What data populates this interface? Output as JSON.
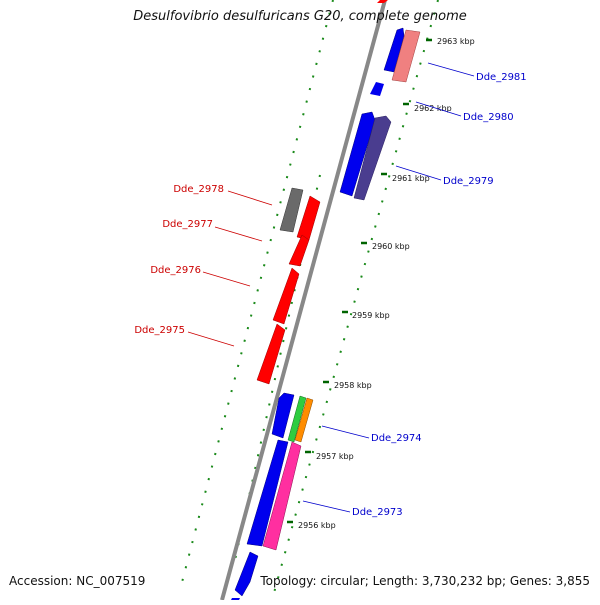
{
  "title": "Desulfovibrio desulfuricans G20, complete genome",
  "footer": {
    "accession": "Accession: NC_007519",
    "topology": "Topology: circular; Length: 3,730,232 bp; Genes: 3,855"
  },
  "kbp_labels": [
    "2963 kbp",
    "2962 kbp",
    "2961 kbp",
    "2960 kbp",
    "2959 kbp",
    "2958 kbp",
    "2957 kbp",
    "2956 kbp"
  ],
  "gene_labels": {
    "left": [
      "Dde_2978",
      "Dde_2977",
      "Dde_2976",
      "Dde_2975"
    ],
    "right": [
      "Dde_2981",
      "Dde_2980",
      "Dde_2979",
      "Dde_2974",
      "Dde_2973"
    ]
  },
  "colors": {
    "blue": "#0000ee",
    "red": "#ff0000",
    "pink_light": "#f08080",
    "slate": "#4a3d8f",
    "gray": "#6a6a6a",
    "green": "#2ecc40",
    "orange": "#ff8c00",
    "magenta": "#ff2fa0",
    "tick_green": "#006400",
    "backbone": "#888888"
  }
}
